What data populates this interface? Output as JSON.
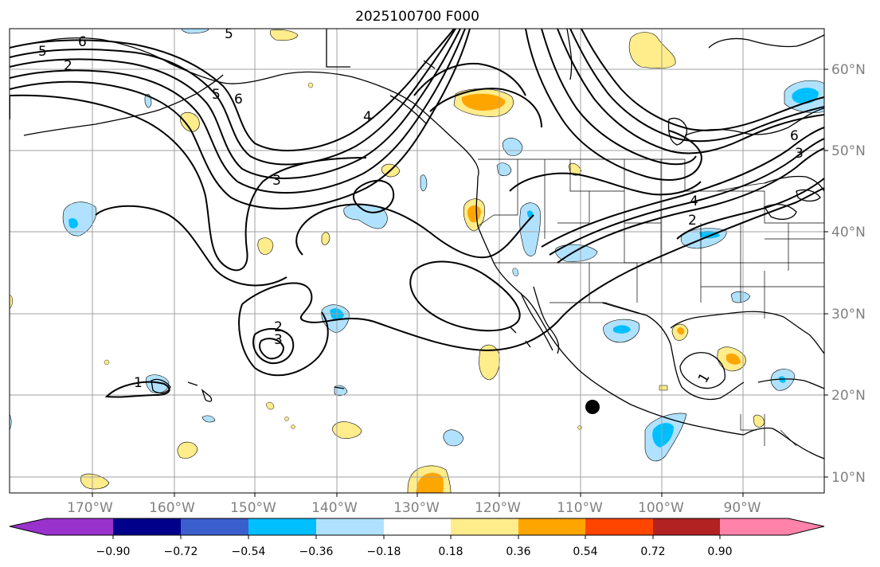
{
  "title": "2025100700 F000",
  "lon_labels": [
    "170°W",
    "160°W",
    "150°W",
    "140°W",
    "130°W",
    "120°W",
    "110°W",
    "100°W",
    "90°W"
  ],
  "lat_labels": [
    "60°N",
    "50°N",
    "40°N",
    "30°N",
    "20°N",
    "10°N"
  ],
  "colorbar": {
    "ticks": [
      "−0.90",
      "−0.72",
      "−0.54",
      "−0.36",
      "−0.18",
      "0.18",
      "0.36",
      "0.54",
      "0.72",
      "0.90"
    ],
    "colors": [
      "#9932cc",
      "#00008b",
      "#3a5fcd",
      "#00bfff",
      "#b0e2ff",
      "#ffffff",
      "#ffec8b",
      "#ffa500",
      "#ff4500",
      "#b22222",
      "#ff82ab"
    ]
  },
  "contour_labels": [
    "5",
    "6",
    "2",
    "5",
    "5",
    "6",
    "4",
    "3",
    "2",
    "3",
    "1",
    "4",
    "2",
    "6",
    "3",
    "1"
  ]
}
